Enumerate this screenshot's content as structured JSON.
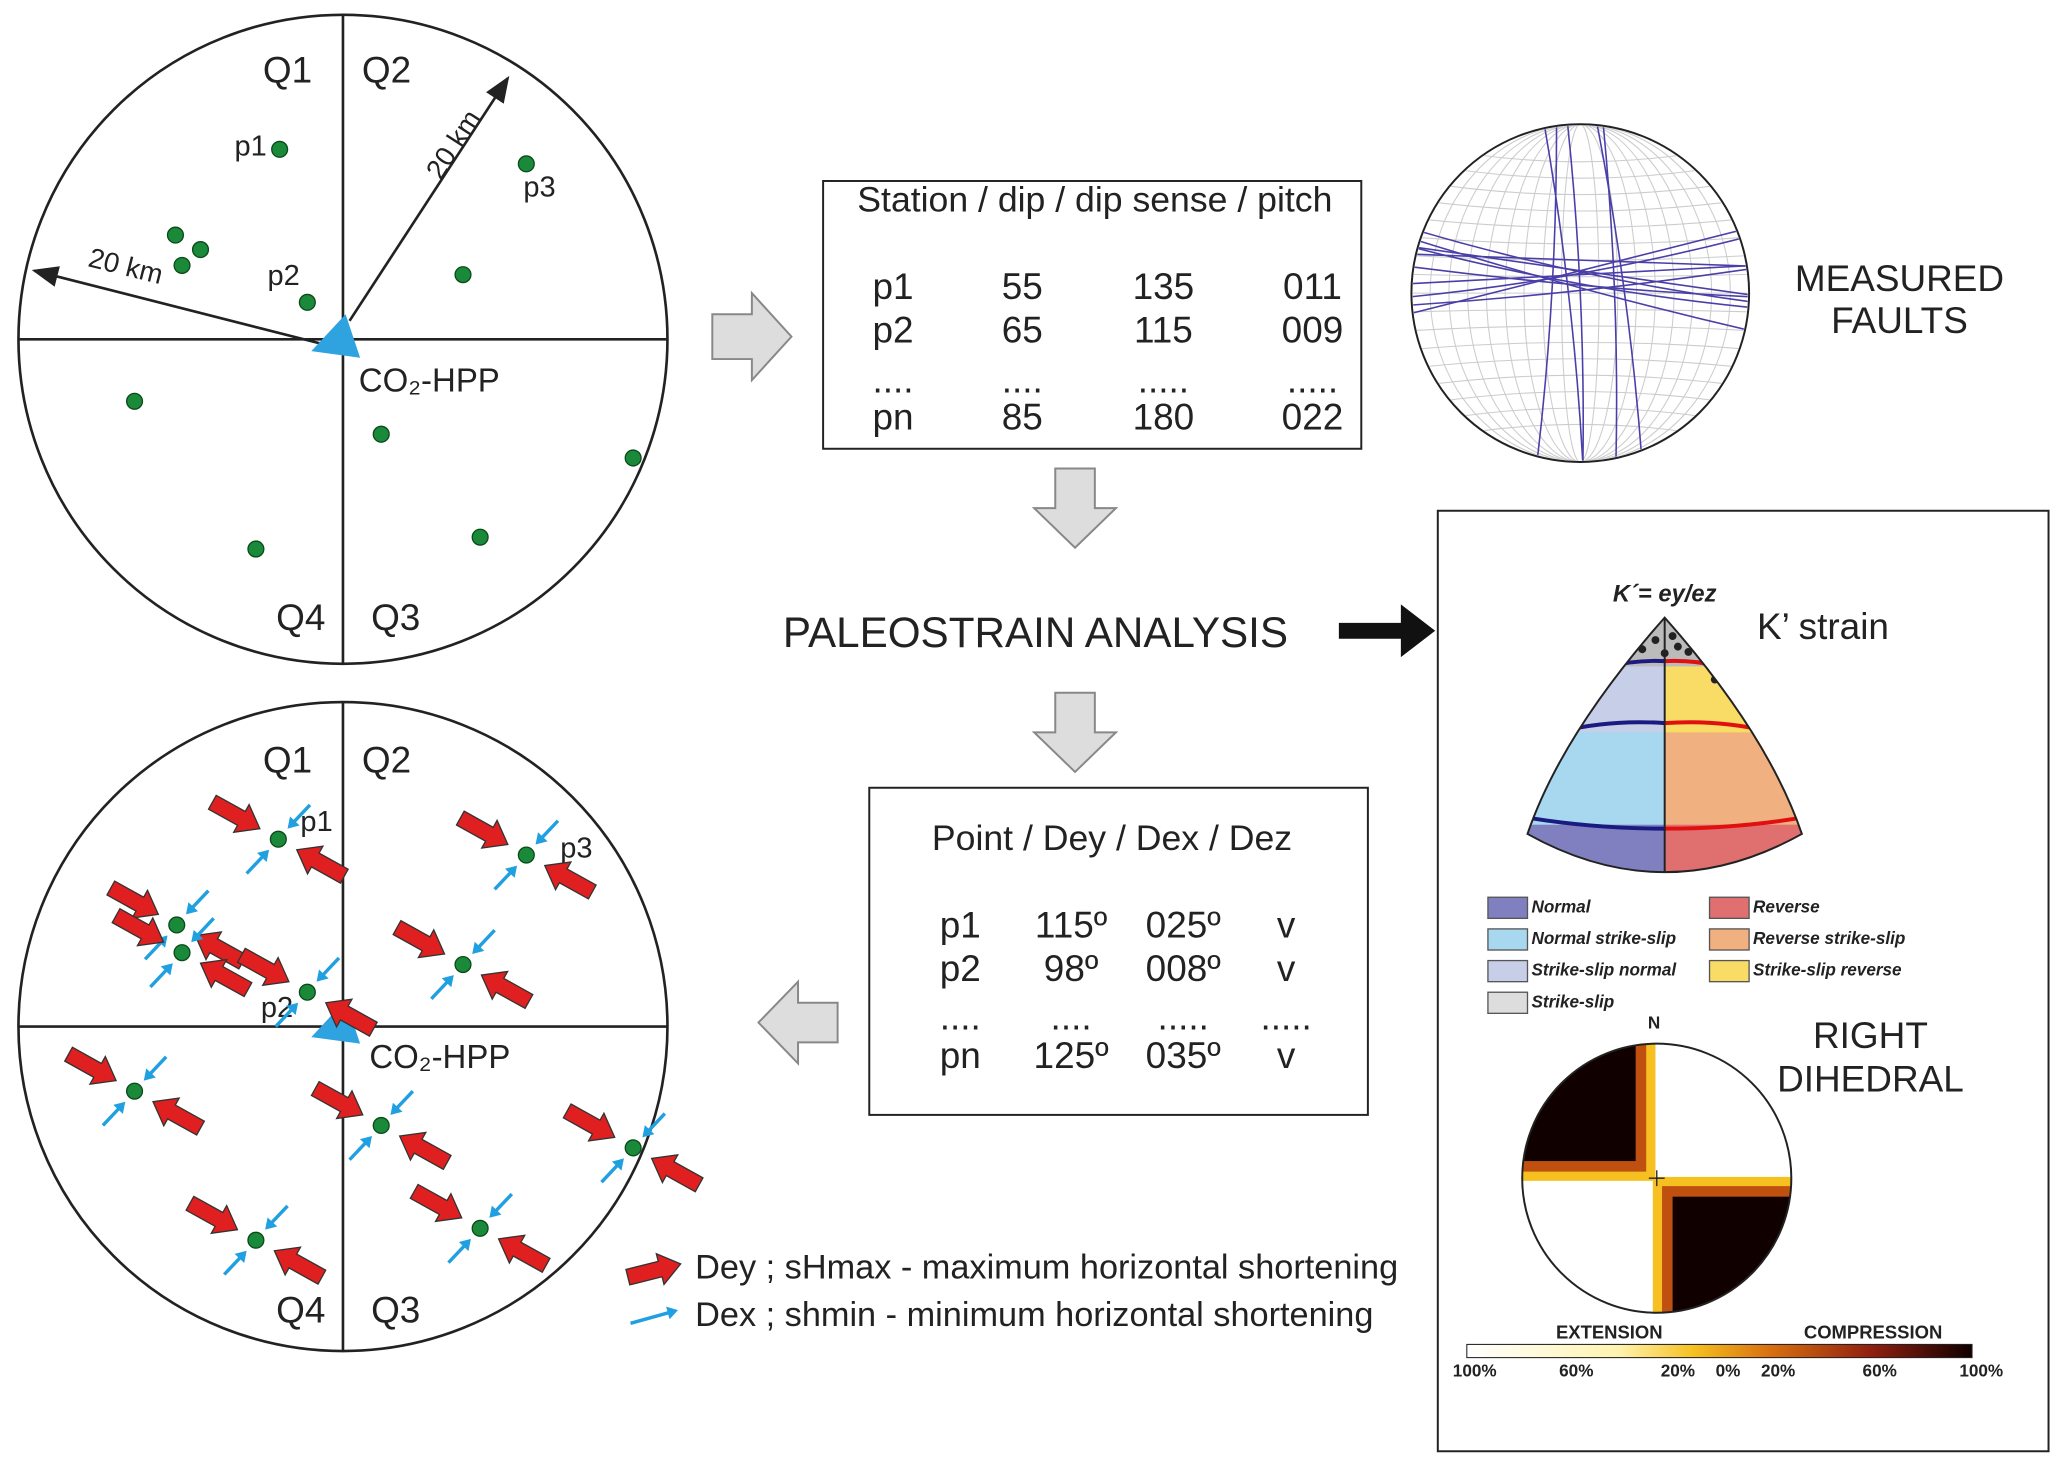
{
  "map_before": {
    "quadrants": [
      "Q1",
      "Q2",
      "Q3",
      "Q4"
    ],
    "points": [
      "p1",
      "p2",
      "p3"
    ],
    "distance_labels": [
      "20 km",
      "20 km"
    ],
    "plant": "CO₂-HPP"
  },
  "faults_table": {
    "header": "Station / dip / dip sense / pitch",
    "rows": [
      [
        "p1",
        "55",
        "135",
        "011"
      ],
      [
        "p2",
        "65",
        "115",
        "009"
      ],
      [
        "....",
        "....",
        ".....",
        "....."
      ],
      [
        "pn",
        "85",
        "180",
        "022"
      ]
    ]
  },
  "stereonet": {
    "label": [
      "MEASURED",
      "FAULTS"
    ]
  },
  "analysis": "PALEOSTRAIN ANALYSIS",
  "strain_table": {
    "header": "Point / Dey / Dex / Dez",
    "rows": [
      [
        "p1",
        "115º",
        "025º",
        "v"
      ],
      [
        "p2",
        "98º",
        "008º",
        "v"
      ],
      [
        "....",
        "....",
        ".....",
        "....."
      ],
      [
        "pn",
        "125º",
        "035º",
        "v"
      ]
    ]
  },
  "map_after": {
    "quadrants": [
      "Q1",
      "Q2",
      "Q3",
      "Q4"
    ],
    "points": [
      "p1",
      "p2",
      "p3"
    ],
    "plant": "CO₂-HPP"
  },
  "arrow_legend": [
    "Dey ; sHmax - maximum horizontal shortening",
    "Dex ; shmin - minimum horizontal shortening"
  ],
  "results_panel": {
    "kprime_formula": "K´= ey/ez",
    "kprime_title": "K’ strain",
    "regime_legend": [
      "Normal",
      "Reverse",
      "Normal strike-slip",
      "Reverse strike-slip",
      "Strike-slip normal",
      "Strike-slip reverse",
      "Strike-slip"
    ],
    "dihedral_title": [
      "RIGHT",
      "DIHEDRAL"
    ],
    "north": "N",
    "scale_titles": [
      "EXTENSION",
      "COMPRESSION"
    ],
    "scale_labels": [
      "100%",
      "60%",
      "20%",
      "0%",
      "20%",
      "60%",
      "100%"
    ]
  }
}
